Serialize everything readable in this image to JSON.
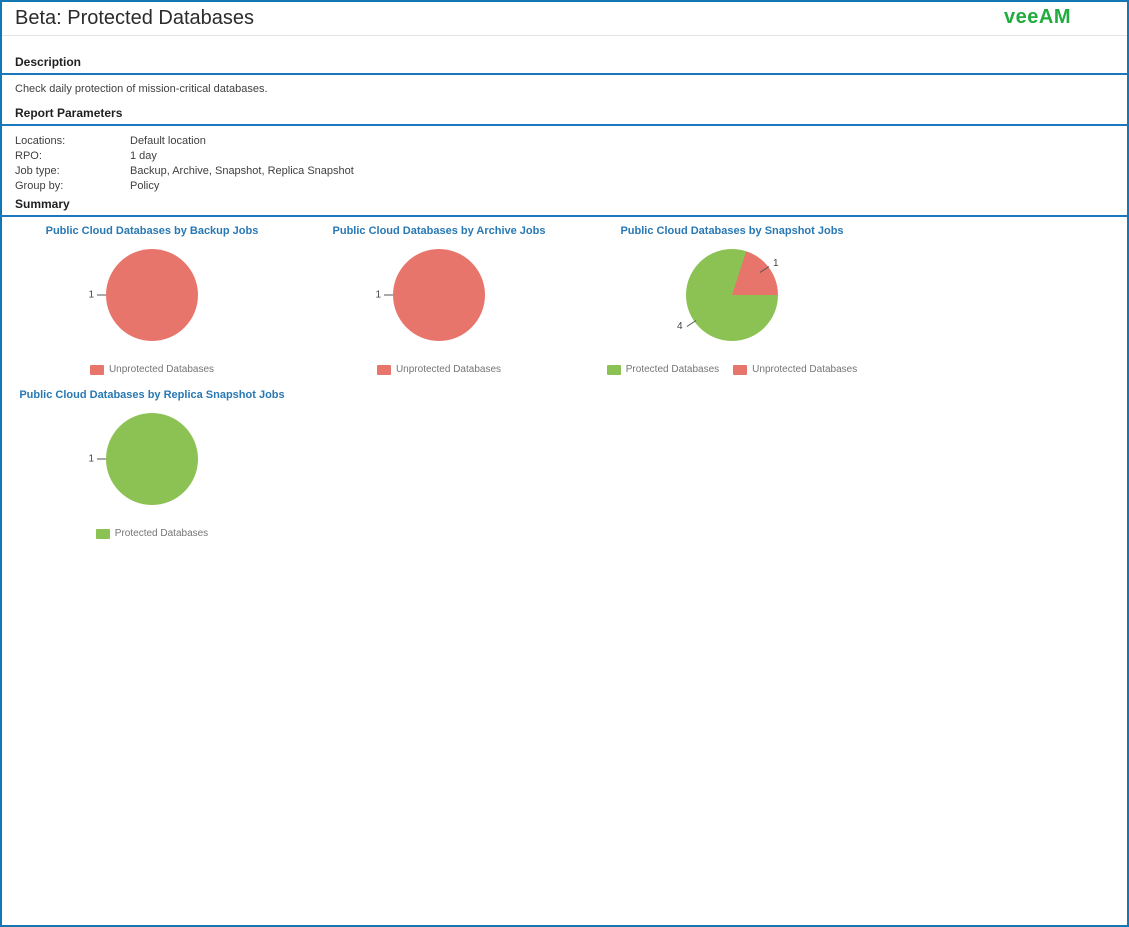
{
  "page": {
    "title": "Beta: Protected Databases",
    "logo_text": "veeAM"
  },
  "colors": {
    "protected": "#8CC153",
    "unprotected": "#E8756B",
    "accent_blue": "#1B78BE",
    "border_blue": "#1377B4",
    "logo_green": "#21AC3F"
  },
  "sections": {
    "description": {
      "heading": "Description",
      "body": "Check daily protection of mission-critical databases."
    },
    "parameters": {
      "heading": "Report Parameters",
      "rows": [
        {
          "label": "Locations:",
          "value": "Default location"
        },
        {
          "label": "RPO:",
          "value": "1 day"
        },
        {
          "label": "Job type:",
          "value": "Backup, Archive, Snapshot, Replica Snapshot"
        },
        {
          "label": "Group by:",
          "value": "Policy"
        }
      ]
    },
    "summary": {
      "heading": "Summary"
    }
  },
  "chart_data": [
    {
      "type": "pie",
      "title": "Public Cloud Databases by Backup Jobs",
      "legend_position": "bottom",
      "slices": [
        {
          "label": "Unprotected Databases",
          "value": 1,
          "color": "unprotected"
        }
      ]
    },
    {
      "type": "pie",
      "title": "Public Cloud Databases by Archive Jobs",
      "legend_position": "bottom",
      "slices": [
        {
          "label": "Unprotected Databases",
          "value": 1,
          "color": "unprotected"
        }
      ]
    },
    {
      "type": "pie",
      "title": "Public Cloud Databases by Snapshot Jobs",
      "legend_position": "bottom",
      "slices": [
        {
          "label": "Protected Databases",
          "value": 4,
          "color": "protected"
        },
        {
          "label": "Unprotected Databases",
          "value": 1,
          "color": "unprotected"
        }
      ]
    },
    {
      "type": "pie",
      "title": "Public Cloud Databases by Replica Snapshot Jobs",
      "legend_position": "bottom",
      "slices": [
        {
          "label": "Protected Databases",
          "value": 1,
          "color": "protected"
        }
      ]
    }
  ]
}
